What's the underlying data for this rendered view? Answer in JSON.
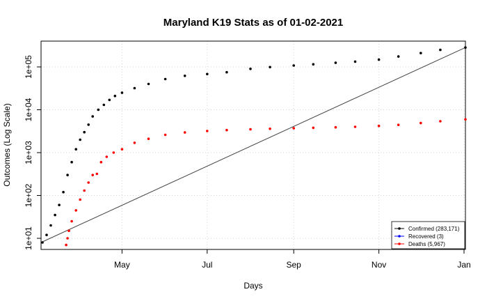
{
  "chart_data": {
    "type": "scatter",
    "title": "Maryland K19 Stats as of 01-02-2021",
    "xlabel": "Days",
    "ylabel": "Outcomes (Log Scale)",
    "y_scale": "log10",
    "ylim": [
      5.5,
      400000
    ],
    "xlim": [
      "2020-03-04",
      "2021-01-02"
    ],
    "grid": true,
    "legend_position": "bottom-right",
    "colors": {
      "Confirmed": "#000000",
      "Recovered": "#0000ff",
      "Deaths": "#ff0000",
      "trend": "#444444"
    },
    "x_ticks": [
      {
        "label": "May",
        "date": "2020-05-01"
      },
      {
        "label": "Jul",
        "date": "2020-07-01"
      },
      {
        "label": "Sep",
        "date": "2020-09-01"
      },
      {
        "label": "Nov",
        "date": "2020-11-01"
      },
      {
        "label": "Jan",
        "date": "2021-01-01"
      }
    ],
    "y_ticks": [
      {
        "label": "1e+01",
        "value": 10
      },
      {
        "label": "1e+02",
        "value": 100
      },
      {
        "label": "1e+03",
        "value": 1000
      },
      {
        "label": "1e+04",
        "value": 10000
      },
      {
        "label": "1e+05",
        "value": 100000
      }
    ],
    "series": [
      {
        "name": "Confirmed (283,171)",
        "color": "#000000",
        "points": [
          [
            "2020-03-05",
            8
          ],
          [
            "2020-03-08",
            12
          ],
          [
            "2020-03-11",
            20
          ],
          [
            "2020-03-14",
            35
          ],
          [
            "2020-03-17",
            60
          ],
          [
            "2020-03-20",
            120
          ],
          [
            "2020-03-23",
            300
          ],
          [
            "2020-03-26",
            600
          ],
          [
            "2020-03-29",
            1200
          ],
          [
            "2020-04-01",
            2000
          ],
          [
            "2020-04-04",
            3000
          ],
          [
            "2020-04-07",
            4500
          ],
          [
            "2020-04-10",
            7000
          ],
          [
            "2020-04-14",
            10000
          ],
          [
            "2020-04-18",
            13000
          ],
          [
            "2020-04-22",
            17000
          ],
          [
            "2020-04-26",
            21000
          ],
          [
            "2020-05-01",
            25000
          ],
          [
            "2020-05-10",
            32000
          ],
          [
            "2020-05-20",
            40000
          ],
          [
            "2020-06-01",
            52000
          ],
          [
            "2020-06-15",
            62000
          ],
          [
            "2020-07-01",
            68000
          ],
          [
            "2020-07-15",
            75000
          ],
          [
            "2020-08-01",
            90000
          ],
          [
            "2020-08-15",
            99000
          ],
          [
            "2020-09-01",
            108000
          ],
          [
            "2020-09-15",
            115000
          ],
          [
            "2020-10-01",
            125000
          ],
          [
            "2020-10-15",
            133000
          ],
          [
            "2020-11-01",
            148000
          ],
          [
            "2020-11-15",
            175000
          ],
          [
            "2020-12-01",
            210000
          ],
          [
            "2020-12-15",
            250000
          ],
          [
            "2021-01-02",
            283171
          ]
        ]
      },
      {
        "name": "Recovered (3)",
        "color": "#0000ff",
        "points": []
      },
      {
        "name": "Deaths (5,967)",
        "color": "#ff0000",
        "points": [
          [
            "2020-03-22",
            7
          ],
          [
            "2020-03-23",
            10
          ],
          [
            "2020-03-24",
            15
          ],
          [
            "2020-03-26",
            25
          ],
          [
            "2020-03-29",
            45
          ],
          [
            "2020-04-01",
            80
          ],
          [
            "2020-04-04",
            130
          ],
          [
            "2020-04-07",
            200
          ],
          [
            "2020-04-10",
            300
          ],
          [
            "2020-04-13",
            320
          ],
          [
            "2020-04-16",
            600
          ],
          [
            "2020-04-20",
            800
          ],
          [
            "2020-04-25",
            1000
          ],
          [
            "2020-05-01",
            1200
          ],
          [
            "2020-05-10",
            1700
          ],
          [
            "2020-05-20",
            2100
          ],
          [
            "2020-06-01",
            2600
          ],
          [
            "2020-06-15",
            2950
          ],
          [
            "2020-07-01",
            3200
          ],
          [
            "2020-07-15",
            3350
          ],
          [
            "2020-08-01",
            3500
          ],
          [
            "2020-08-15",
            3600
          ],
          [
            "2020-09-01",
            3700
          ],
          [
            "2020-09-15",
            3800
          ],
          [
            "2020-10-01",
            3900
          ],
          [
            "2020-10-15",
            4000
          ],
          [
            "2020-11-01",
            4200
          ],
          [
            "2020-11-15",
            4450
          ],
          [
            "2020-12-01",
            4900
          ],
          [
            "2020-12-15",
            5400
          ],
          [
            "2021-01-02",
            5967
          ]
        ]
      }
    ],
    "trend_line": [
      [
        "2020-03-04",
        8
      ],
      [
        "2021-01-02",
        283171
      ]
    ]
  }
}
